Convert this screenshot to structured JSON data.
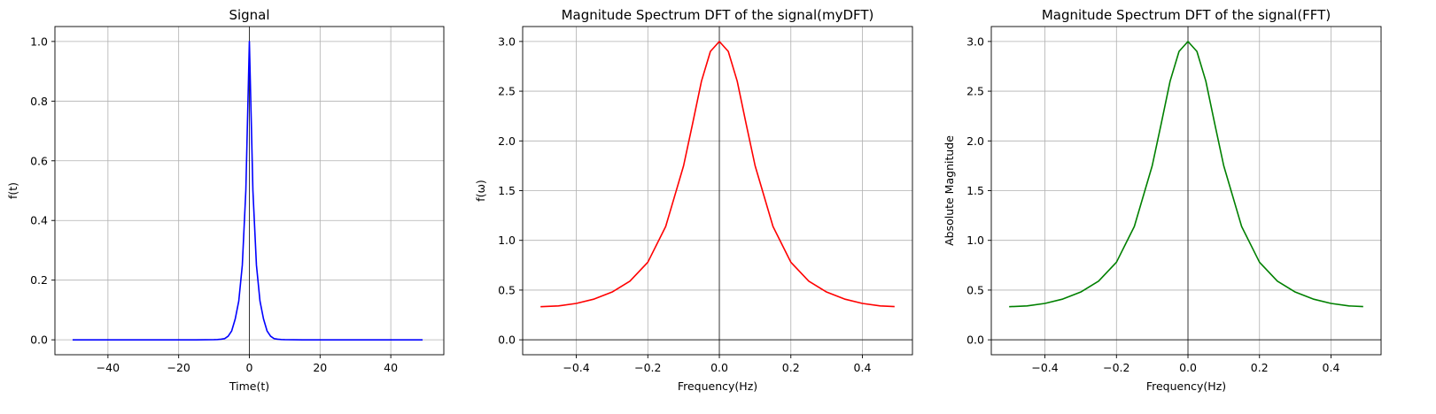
{
  "chart_data": [
    {
      "type": "line",
      "title": "Signal",
      "xlabel": "Time(t)",
      "ylabel": "f(t)",
      "xlim": [
        -55,
        55
      ],
      "ylim": [
        -0.05,
        1.05
      ],
      "xticks": [
        -40,
        -20,
        0,
        20,
        40
      ],
      "xtick_labels": [
        "−40",
        "−20",
        "0",
        "20",
        "40"
      ],
      "yticks": [
        0.0,
        0.2,
        0.4,
        0.6,
        0.8,
        1.0
      ],
      "ytick_labels": [
        "0.0",
        "0.2",
        "0.4",
        "0.6",
        "0.8",
        "1.0"
      ],
      "grid": true,
      "zero_lines": [
        "vertical"
      ],
      "series": [
        {
          "color": "#0000ff",
          "x": [
            -50,
            -45,
            -40,
            -35,
            -30,
            -25,
            -20,
            -15,
            -10,
            -9,
            -8,
            -7,
            -6,
            -5,
            -4,
            -3,
            -2,
            -1,
            0,
            1,
            2,
            3,
            4,
            5,
            6,
            7,
            8,
            9,
            10,
            15,
            20,
            25,
            30,
            35,
            40,
            45,
            49
          ],
          "y": [
            0,
            0,
            0,
            0,
            0,
            0,
            0,
            0,
            0.0005,
            0.001,
            0.002,
            0.004,
            0.012,
            0.03,
            0.07,
            0.13,
            0.25,
            0.5,
            1.0,
            0.5,
            0.25,
            0.13,
            0.07,
            0.03,
            0.012,
            0.004,
            0.002,
            0.001,
            0.0005,
            0,
            0,
            0,
            0,
            0,
            0,
            0,
            0
          ]
        }
      ]
    },
    {
      "type": "line",
      "title": "Magnitude Spectrum DFT of the signal(myDFT)",
      "xlabel": "Frequency(Hz)",
      "ylabel": "f(ω)",
      "xlim": [
        -0.55,
        0.54
      ],
      "ylim": [
        -0.15,
        3.15
      ],
      "xticks": [
        -0.4,
        -0.2,
        0.0,
        0.2,
        0.4
      ],
      "xtick_labels": [
        "−0.4",
        "−0.2",
        "0.0",
        "0.2",
        "0.4"
      ],
      "yticks": [
        0.0,
        0.5,
        1.0,
        1.5,
        2.0,
        2.5,
        3.0
      ],
      "ytick_labels": [
        "0.0",
        "0.5",
        "1.0",
        "1.5",
        "2.0",
        "2.5",
        "3.0"
      ],
      "grid": true,
      "zero_lines": [
        "vertical",
        "horizontal"
      ],
      "series": [
        {
          "color": "#ff0000",
          "x": [
            -0.5,
            -0.45,
            -0.4,
            -0.35,
            -0.3,
            -0.25,
            -0.2,
            -0.15,
            -0.1,
            -0.075,
            -0.05,
            -0.025,
            0.0,
            0.025,
            0.05,
            0.075,
            0.1,
            0.15,
            0.2,
            0.25,
            0.3,
            0.35,
            0.4,
            0.45,
            0.49
          ],
          "y": [
            0.333,
            0.341,
            0.366,
            0.41,
            0.48,
            0.59,
            0.78,
            1.14,
            1.75,
            2.17,
            2.6,
            2.9,
            3.0,
            2.9,
            2.6,
            2.17,
            1.75,
            1.14,
            0.78,
            0.59,
            0.48,
            0.41,
            0.366,
            0.341,
            0.334
          ]
        }
      ]
    },
    {
      "type": "line",
      "title": "Magnitude Spectrum DFT of the signal(FFT)",
      "xlabel": "Frequency(Hz)",
      "ylabel": "Absolute Magnitude",
      "xlim": [
        -0.55,
        0.54
      ],
      "ylim": [
        -0.15,
        3.15
      ],
      "xticks": [
        -0.4,
        -0.2,
        0.0,
        0.2,
        0.4
      ],
      "xtick_labels": [
        "−0.4",
        "−0.2",
        "0.0",
        "0.2",
        "0.4"
      ],
      "yticks": [
        0.0,
        0.5,
        1.0,
        1.5,
        2.0,
        2.5,
        3.0
      ],
      "ytick_labels": [
        "0.0",
        "0.5",
        "1.0",
        "1.5",
        "2.0",
        "2.5",
        "3.0"
      ],
      "grid": true,
      "zero_lines": [
        "vertical",
        "horizontal"
      ],
      "series": [
        {
          "color": "#008000",
          "x": [
            -0.5,
            -0.45,
            -0.4,
            -0.35,
            -0.3,
            -0.25,
            -0.2,
            -0.15,
            -0.1,
            -0.075,
            -0.05,
            -0.025,
            0.0,
            0.025,
            0.05,
            0.075,
            0.1,
            0.15,
            0.2,
            0.25,
            0.3,
            0.35,
            0.4,
            0.45,
            0.49
          ],
          "y": [
            0.333,
            0.341,
            0.366,
            0.41,
            0.48,
            0.59,
            0.78,
            1.14,
            1.75,
            2.17,
            2.6,
            2.9,
            3.0,
            2.9,
            2.6,
            2.17,
            1.75,
            1.14,
            0.78,
            0.59,
            0.48,
            0.41,
            0.366,
            0.341,
            0.334
          ]
        }
      ]
    }
  ]
}
